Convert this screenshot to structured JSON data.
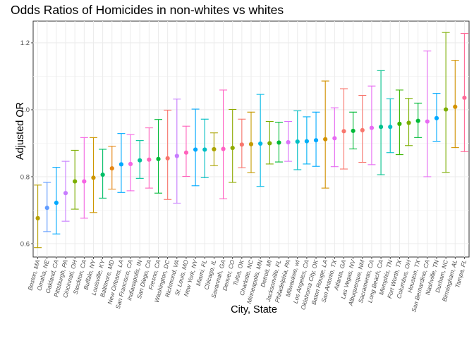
{
  "chart_data": {
    "type": "scatter",
    "title": "Odds Ratios of Homicides in non-whites vs whites",
    "xlabel": "City, State",
    "ylabel": "Adjusted OR",
    "ylim": [
      0.56,
      1.265
    ],
    "yticks": [
      0.6,
      0.8,
      1.0,
      1.2
    ],
    "ytick_labels": [
      "0.6",
      "0.8",
      "1.0",
      "1.2"
    ],
    "grid": true,
    "legend": "none",
    "error_bars": true,
    "points": [
      {
        "city": "Boston, MA",
        "or": 0.676,
        "lo": 0.588,
        "hi": 0.775,
        "color": "#B79F00"
      },
      {
        "city": "Omaha, NE",
        "or": 0.707,
        "lo": 0.636,
        "hi": 0.783,
        "color": "#619CFF"
      },
      {
        "city": "Oakland, CA",
        "or": 0.722,
        "lo": 0.629,
        "hi": 0.828,
        "color": "#00A9FF"
      },
      {
        "city": "Pittsburgh, PA",
        "or": 0.751,
        "lo": 0.667,
        "hi": 0.846,
        "color": "#C77CFF"
      },
      {
        "city": "Cincinnati, OH",
        "or": 0.786,
        "lo": 0.703,
        "hi": 0.879,
        "color": "#7CAE00"
      },
      {
        "city": "Stockton, CA",
        "or": 0.786,
        "lo": 0.676,
        "hi": 0.917,
        "color": "#F564E3"
      },
      {
        "city": "Buffalo, NY",
        "or": 0.797,
        "lo": 0.693,
        "hi": 0.917,
        "color": "#CD9600"
      },
      {
        "city": "Louisville, KY",
        "or": 0.806,
        "lo": 0.736,
        "hi": 0.882,
        "color": "#00BE67"
      },
      {
        "city": "Baltimore, MD",
        "or": 0.825,
        "lo": 0.763,
        "hi": 0.891,
        "color": "#E68613"
      },
      {
        "city": "New Orleans, LA",
        "or": 0.837,
        "lo": 0.753,
        "hi": 0.929,
        "color": "#00A9FF"
      },
      {
        "city": "San Francisco, CA",
        "or": 0.838,
        "lo": 0.758,
        "hi": 0.926,
        "color": "#F564E3"
      },
      {
        "city": "Indianapolis, IN",
        "or": 0.849,
        "lo": 0.795,
        "hi": 0.908,
        "color": "#00C19A"
      },
      {
        "city": "San Diego, CA",
        "or": 0.851,
        "lo": 0.766,
        "hi": 0.946,
        "color": "#FF62BC"
      },
      {
        "city": "Fresno, CA",
        "or": 0.853,
        "lo": 0.751,
        "hi": 0.971,
        "color": "#00BA38"
      },
      {
        "city": "Washington, DC",
        "or": 0.855,
        "lo": 0.732,
        "hi": 0.999,
        "color": "#F8766D"
      },
      {
        "city": "Richmond, VA",
        "or": 0.862,
        "lo": 0.721,
        "hi": 1.032,
        "color": "#C77CFF"
      },
      {
        "city": "St. Louis, MO",
        "or": 0.872,
        "lo": 0.801,
        "hi": 0.951,
        "color": "#FF62BC"
      },
      {
        "city": "New York, NY",
        "or": 0.881,
        "lo": 0.773,
        "hi": 1.002,
        "color": "#00A9FF"
      },
      {
        "city": "Miami, FL",
        "or": 0.881,
        "lo": 0.797,
        "hi": 0.972,
        "color": "#00BFC4"
      },
      {
        "city": "Chicago, IL",
        "or": 0.882,
        "lo": 0.833,
        "hi": 0.931,
        "color": "#ABA300"
      },
      {
        "city": "Savannah, GA",
        "or": 0.883,
        "lo": 0.734,
        "hi": 1.059,
        "color": "#FF61C3"
      },
      {
        "city": "Denver, CO",
        "or": 0.886,
        "lo": 0.783,
        "hi": 1.001,
        "color": "#8FAA00"
      },
      {
        "city": "Tulsa, OK",
        "or": 0.896,
        "lo": 0.827,
        "hi": 0.972,
        "color": "#F8766D"
      },
      {
        "city": "Charlotte, NC",
        "or": 0.897,
        "lo": 0.812,
        "hi": 0.993,
        "color": "#C49A00"
      },
      {
        "city": "Minneapolis, MN",
        "or": 0.899,
        "lo": 0.771,
        "hi": 1.046,
        "color": "#00B8E7"
      },
      {
        "city": "Detroit, MI",
        "or": 0.9,
        "lo": 0.838,
        "hi": 0.965,
        "color": "#7CAE00"
      },
      {
        "city": "Jacksonville, FL",
        "or": 0.902,
        "lo": 0.844,
        "hi": 0.963,
        "color": "#00BA38"
      },
      {
        "city": "Philadelphia, PA",
        "or": 0.903,
        "lo": 0.846,
        "hi": 0.965,
        "color": "#DB72FB"
      },
      {
        "city": "Milwaukee, wI",
        "or": 0.905,
        "lo": 0.821,
        "hi": 0.997,
        "color": "#00BFC4"
      },
      {
        "city": "Los Angeles, CA",
        "or": 0.906,
        "lo": 0.838,
        "hi": 0.979,
        "color": "#00B0F6"
      },
      {
        "city": "Oklahoma City, OK",
        "or": 0.909,
        "lo": 0.831,
        "hi": 0.993,
        "color": "#00A9FF"
      },
      {
        "city": "Baton Rouge, LA",
        "or": 0.912,
        "lo": 0.766,
        "hi": 1.086,
        "color": "#D39200"
      },
      {
        "city": "San Antonio, TX",
        "or": 0.915,
        "lo": 0.83,
        "hi": 1.006,
        "color": "#E76BF3"
      },
      {
        "city": "Atlanta, GA",
        "or": 0.936,
        "lo": 0.823,
        "hi": 1.063,
        "color": "#F8766D"
      },
      {
        "city": "Las Vegas, NV",
        "or": 0.937,
        "lo": 0.883,
        "hi": 0.993,
        "color": "#00BA38"
      },
      {
        "city": "Albuquerque, NM",
        "or": 0.939,
        "lo": 0.843,
        "hi": 1.043,
        "color": "#F8766D"
      },
      {
        "city": "Sacramento, CA",
        "or": 0.946,
        "lo": 0.836,
        "hi": 1.071,
        "color": "#E76BF3"
      },
      {
        "city": "Long Beach, CA",
        "or": 0.949,
        "lo": 0.806,
        "hi": 1.117,
        "color": "#00C08B"
      },
      {
        "city": "Memphis, TN",
        "or": 0.949,
        "lo": 0.872,
        "hi": 1.033,
        "color": "#00BFC4"
      },
      {
        "city": "Fort Worth, TX",
        "or": 0.958,
        "lo": 0.866,
        "hi": 1.059,
        "color": "#39B600"
      },
      {
        "city": "Columbus, OH",
        "or": 0.961,
        "lo": 0.893,
        "hi": 1.034,
        "color": "#7CAE00"
      },
      {
        "city": "Houston, TX",
        "or": 0.967,
        "lo": 0.917,
        "hi": 1.02,
        "color": "#00BA38"
      },
      {
        "city": "San Bernardino, CA",
        "or": 0.965,
        "lo": 0.8,
        "hi": 1.176,
        "color": "#E76BF3"
      },
      {
        "city": "Nashville, TN",
        "or": 0.975,
        "lo": 0.906,
        "hi": 1.049,
        "color": "#00A9FF"
      },
      {
        "city": "Durham, NC",
        "or": 1.001,
        "lo": 0.813,
        "hi": 1.231,
        "color": "#7CAE00"
      },
      {
        "city": "Birmingham, AL",
        "or": 1.009,
        "lo": 0.887,
        "hi": 1.148,
        "color": "#D39200"
      },
      {
        "city": "Tampa, FL",
        "or": 1.036,
        "lo": 0.875,
        "hi": 1.228,
        "color": "#FF6A98"
      }
    ]
  }
}
